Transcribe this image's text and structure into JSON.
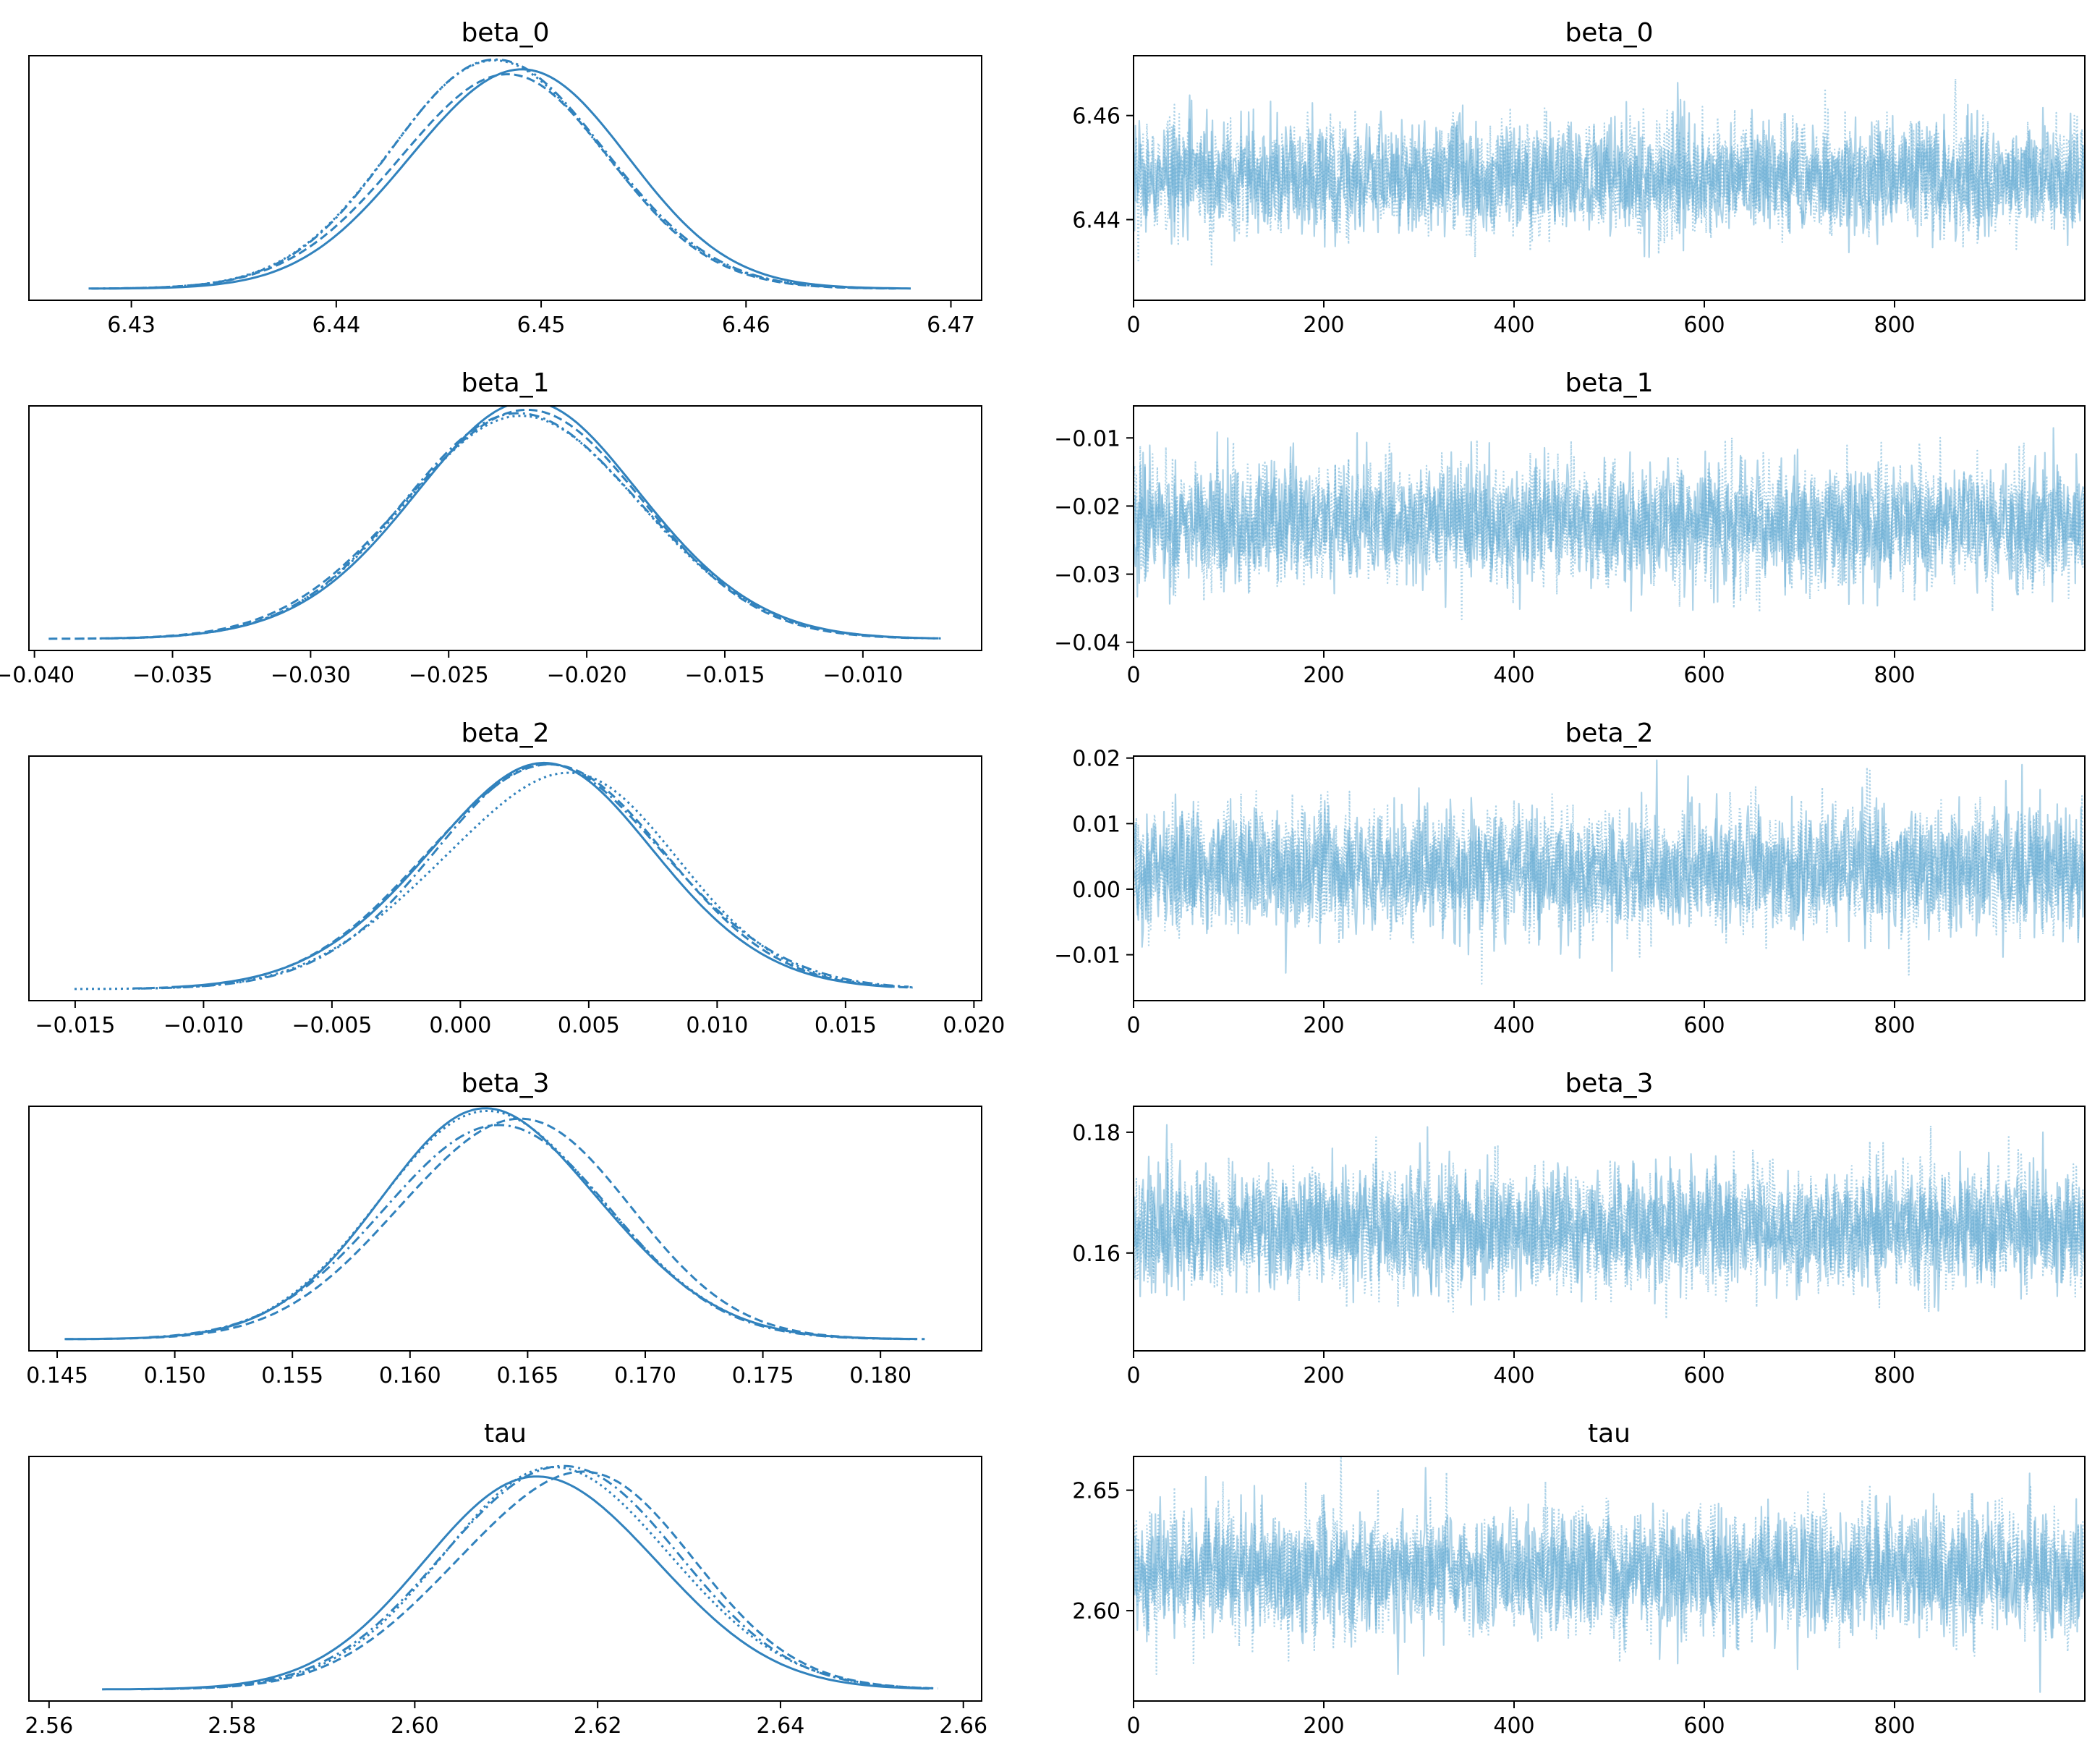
{
  "chart_data": [
    {
      "type": "line",
      "kind": "kde",
      "title": "beta_0",
      "xlim": [
        6.425,
        6.4715
      ],
      "xticks": [
        6.43,
        6.44,
        6.45,
        6.46,
        6.47
      ],
      "xtick_labels": [
        "6.43",
        "6.44",
        "6.45",
        "6.46",
        "6.47"
      ],
      "mode": 6.448,
      "sd": 0.0052,
      "support": [
        6.426,
        6.469
      ],
      "chains": 4,
      "line_styles": [
        "solid",
        "dashed",
        "dotted",
        "dashdot"
      ],
      "color": "#3182bd"
    },
    {
      "type": "line",
      "kind": "trace",
      "title": "beta_0",
      "xlim": [
        0,
        1000
      ],
      "ylim": [
        6.4245,
        6.4715
      ],
      "xticks": [
        0,
        200,
        400,
        600,
        800
      ],
      "xtick_labels": [
        "0",
        "200",
        "400",
        "600",
        "800"
      ],
      "yticks": [
        6.44,
        6.46
      ],
      "ytick_labels": [
        "6.44",
        "6.46"
      ],
      "mean": 6.448,
      "sd": 0.0052,
      "draws": 1000,
      "chains": 4,
      "color": "#6baed6"
    },
    {
      "type": "line",
      "kind": "kde",
      "title": "beta_1",
      "xlim": [
        -0.0402,
        -0.0057
      ],
      "xticks": [
        -0.04,
        -0.035,
        -0.03,
        -0.025,
        -0.02,
        -0.015,
        -0.01
      ],
      "xtick_labels": [
        "−0.040",
        "−0.035",
        "−0.030",
        "−0.025",
        "−0.020",
        "−0.015",
        "−0.010"
      ],
      "mode": -0.0225,
      "sd": 0.0043,
      "support": [
        -0.0395,
        -0.007
      ],
      "chains": 4,
      "line_styles": [
        "solid",
        "dashed",
        "dotted",
        "dashdot"
      ],
      "color": "#3182bd"
    },
    {
      "type": "line",
      "kind": "trace",
      "title": "beta_1",
      "xlim": [
        0,
        1000
      ],
      "ylim": [
        -0.0412,
        -0.0053
      ],
      "xticks": [
        0,
        200,
        400,
        600,
        800
      ],
      "xtick_labels": [
        "0",
        "200",
        "400",
        "600",
        "800"
      ],
      "yticks": [
        -0.04,
        -0.03,
        -0.02,
        -0.01
      ],
      "ytick_labels": [
        "−0.04",
        "−0.03",
        "−0.02",
        "−0.01"
      ],
      "mean": -0.0225,
      "sd": 0.0043,
      "draws": 1000,
      "chains": 4,
      "color": "#6baed6"
    },
    {
      "type": "line",
      "kind": "kde",
      "title": "beta_2",
      "xlim": [
        -0.0168,
        0.0203
      ],
      "xticks": [
        -0.015,
        -0.01,
        -0.005,
        0.0,
        0.005,
        0.01,
        0.015,
        0.02
      ],
      "xtick_labels": [
        "−0.015",
        "−0.010",
        "−0.005",
        "0.000",
        "0.005",
        "0.010",
        "0.015",
        "0.020"
      ],
      "mode": 0.003,
      "sd": 0.0046,
      "support": [
        -0.0155,
        0.0185
      ],
      "chains": 4,
      "line_styles": [
        "solid",
        "dashed",
        "dotted",
        "dashdot"
      ],
      "color": "#3182bd"
    },
    {
      "type": "line",
      "kind": "trace",
      "title": "beta_2",
      "xlim": [
        0,
        1000
      ],
      "ylim": [
        -0.017,
        0.0203
      ],
      "xticks": [
        0,
        200,
        400,
        600,
        800
      ],
      "xtick_labels": [
        "0",
        "200",
        "400",
        "600",
        "800"
      ],
      "yticks": [
        -0.01,
        0.0,
        0.01,
        0.02
      ],
      "ytick_labels": [
        "−0.01",
        "0.00",
        "0.01",
        "0.02"
      ],
      "mean": 0.003,
      "sd": 0.0046,
      "draws": 1000,
      "chains": 4,
      "color": "#6baed6"
    },
    {
      "type": "line",
      "kind": "kde",
      "title": "beta_3",
      "xlim": [
        0.1438,
        0.1843
      ],
      "xticks": [
        0.145,
        0.15,
        0.155,
        0.16,
        0.165,
        0.17,
        0.175,
        0.18
      ],
      "xtick_labels": [
        "0.145",
        "0.150",
        "0.155",
        "0.160",
        "0.165",
        "0.170",
        "0.175",
        "0.180"
      ],
      "mode": 0.164,
      "sd": 0.0048,
      "support": [
        0.145,
        0.1827
      ],
      "chains": 4,
      "line_styles": [
        "solid",
        "dashed",
        "dotted",
        "dashdot"
      ],
      "color": "#3182bd"
    },
    {
      "type": "line",
      "kind": "trace",
      "title": "beta_3",
      "xlim": [
        0,
        1000
      ],
      "ylim": [
        0.1438,
        0.1843
      ],
      "xticks": [
        0,
        200,
        400,
        600,
        800
      ],
      "xtick_labels": [
        "0",
        "200",
        "400",
        "600",
        "800"
      ],
      "yticks": [
        0.16,
        0.18
      ],
      "ytick_labels": [
        "0.16",
        "0.18"
      ],
      "mean": 0.164,
      "sd": 0.0048,
      "draws": 1000,
      "chains": 4,
      "color": "#6baed6"
    },
    {
      "type": "line",
      "kind": "kde",
      "title": "tau",
      "xlim": [
        2.5578,
        2.662
      ],
      "xticks": [
        2.56,
        2.58,
        2.6,
        2.62,
        2.64,
        2.66
      ],
      "xtick_labels": [
        "2.56",
        "2.58",
        "2.60",
        "2.62",
        "2.64",
        "2.66"
      ],
      "mode": 2.616,
      "sd": 0.0125,
      "support": [
        2.561,
        2.6585
      ],
      "chains": 4,
      "line_styles": [
        "solid",
        "dashed",
        "dotted",
        "dashdot"
      ],
      "color": "#3182bd"
    },
    {
      "type": "line",
      "kind": "trace",
      "title": "tau",
      "xlim": [
        0,
        1000
      ],
      "ylim": [
        2.5625,
        2.664
      ],
      "xticks": [
        0,
        200,
        400,
        600,
        800
      ],
      "xtick_labels": [
        "0",
        "200",
        "400",
        "600",
        "800"
      ],
      "yticks": [
        2.6,
        2.65
      ],
      "ytick_labels": [
        "2.60",
        "2.65"
      ],
      "mean": 2.616,
      "sd": 0.0125,
      "draws": 1000,
      "chains": 4,
      "color": "#6baed6"
    }
  ]
}
